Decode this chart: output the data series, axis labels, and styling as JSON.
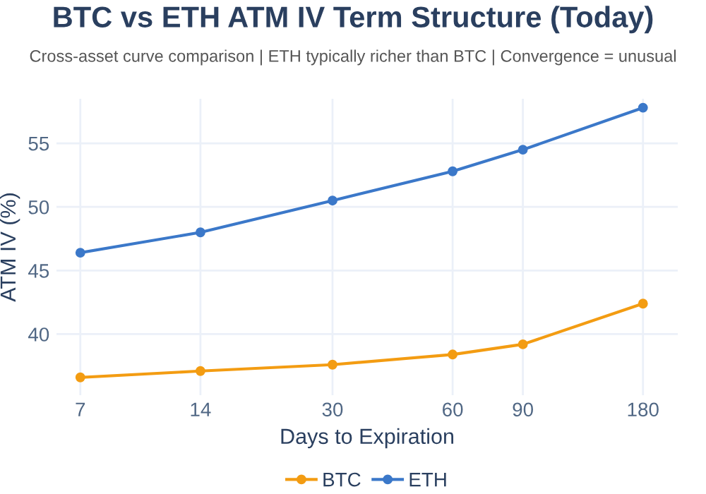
{
  "chart_data": {
    "type": "line",
    "title": "BTC vs ETH ATM IV Term Structure (Today)",
    "subtitle": "Cross-asset curve comparison | ETH typically richer than BTC | Convergence = unusual",
    "xlabel": "Days to Expiration",
    "ylabel": "ATM IV (%)",
    "x": [
      7,
      14,
      30,
      60,
      90,
      180
    ],
    "series": [
      {
        "name": "BTC",
        "color": "#f39c12",
        "values": [
          36.6,
          37.1,
          37.6,
          38.4,
          39.2,
          42.4
        ]
      },
      {
        "name": "ETH",
        "color": "#3b78c9",
        "values": [
          46.4,
          48.0,
          50.5,
          52.8,
          54.5,
          57.8
        ]
      }
    ],
    "log": "x",
    "xlim": [
      6.1,
      220
    ],
    "xticks": [
      7,
      14,
      30,
      60,
      90,
      180
    ],
    "ylim": [
      35.2,
      58.5
    ],
    "yticks": [
      40,
      45,
      50,
      55
    ],
    "grid": true,
    "legend": "bottom",
    "marker": "circle",
    "line_style": "solid"
  }
}
